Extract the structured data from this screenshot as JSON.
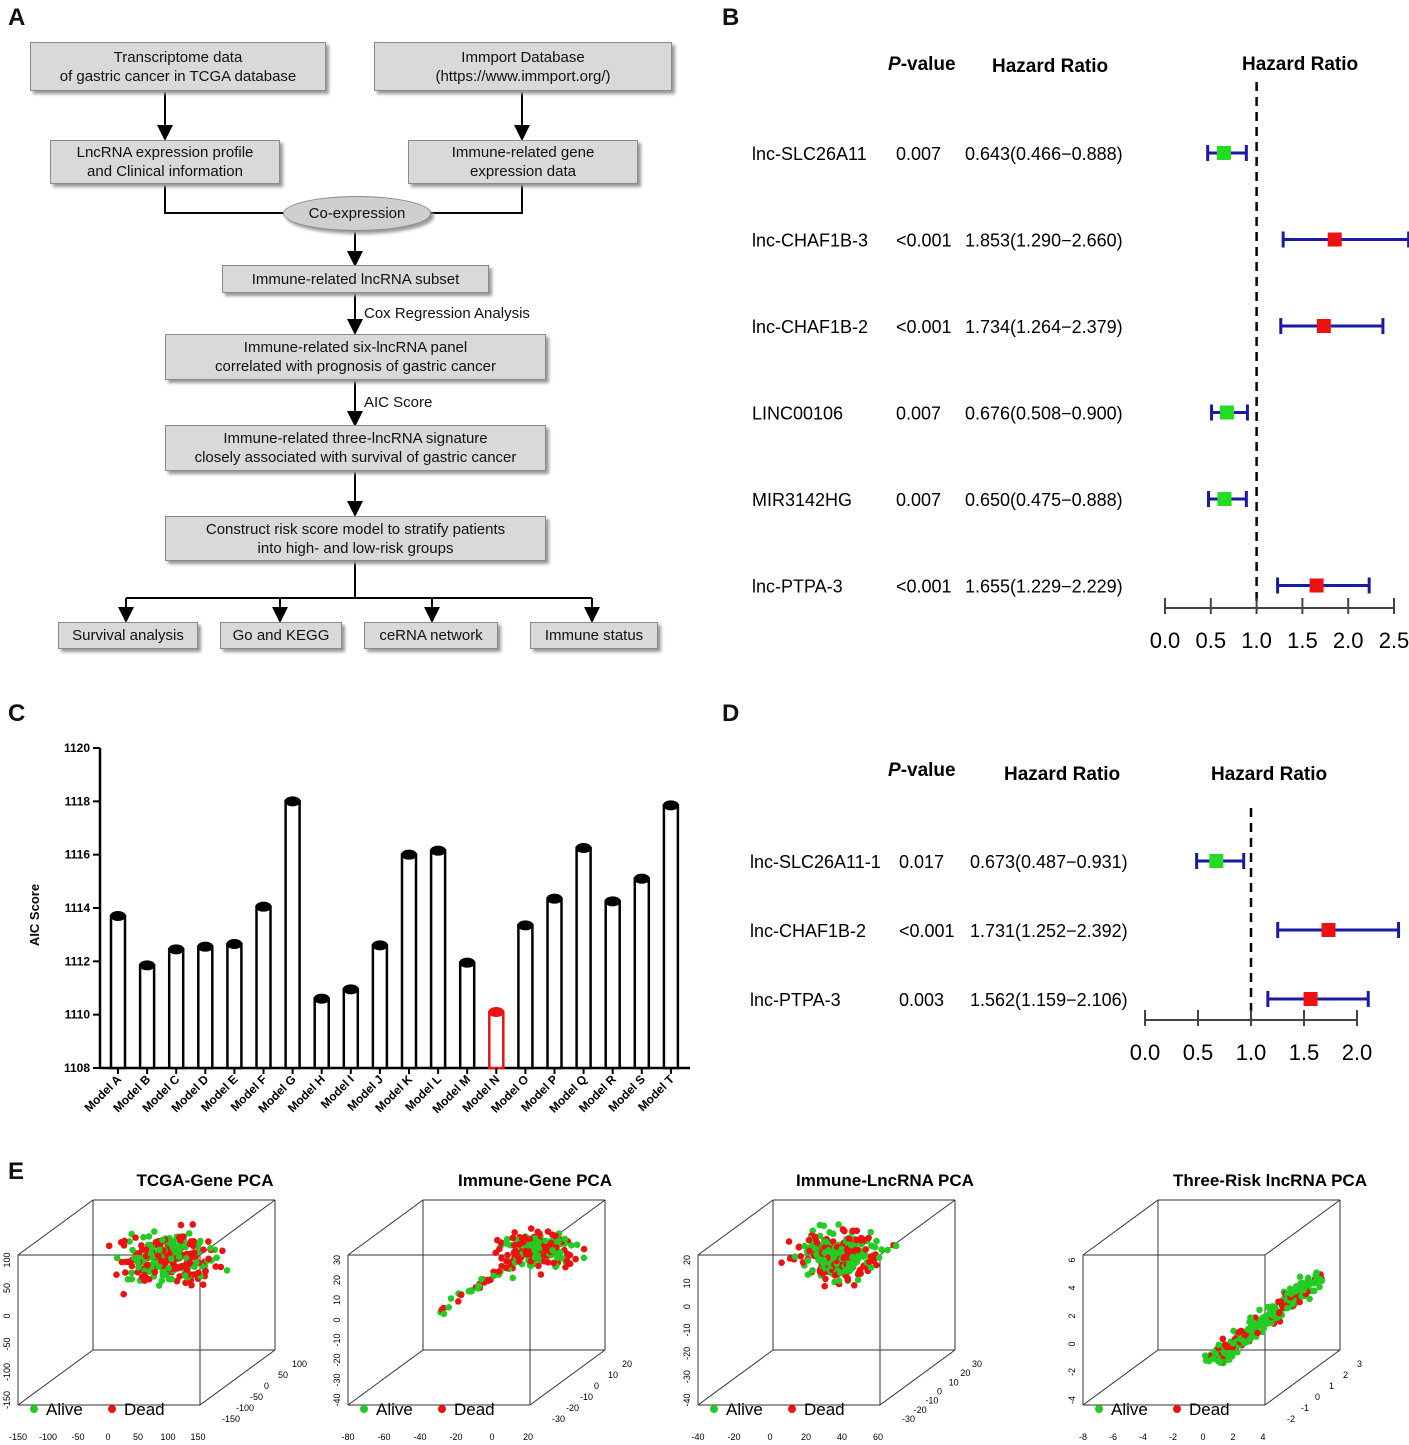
{
  "panels": {
    "a": "A",
    "b": "B",
    "c": "C",
    "d": "D",
    "e": "E"
  },
  "flowchart": {
    "tcga_box": "Transcriptome data\nof gastric cancer in TCGA database",
    "immport_box": "Immport Database\n(https://www.immport.org/)",
    "lnc_box": "LncRNA expression profile\nand Clinical information",
    "immune_gene_box": "Immune-related gene\nexpression data",
    "coexpression": "Co-expression",
    "subset_box": "Immune-related lncRNA subset",
    "cox_label": "Cox Regression Analysis",
    "six_panel_box": "Immune-related six-lncRNA panel\ncorrelated with prognosis of gastric cancer",
    "aic_label": "AIC Score",
    "three_sig_box": "Immune-related three-lncRNA signature\nclosely associated with survival of gastric cancer",
    "risk_box": "Construct risk score model to stratify patients\ninto high- and low-risk groups",
    "outputs": [
      "Survival analysis",
      "Go and KEGG",
      "ceRNA network",
      "Immune status"
    ]
  },
  "forest_b": {
    "headers": {
      "p_prefix": "P",
      "p_suffix": "-value",
      "hr": "Hazard Ratio",
      "plot_title": "Hazard Ratio"
    },
    "xticks": [
      "0.0",
      "0.5",
      "1.0",
      "1.5",
      "2.0",
      "2.5"
    ],
    "xmin": 0.0,
    "xmax": 2.5,
    "ref": 1.0,
    "rows": [
      {
        "name": "lnc-SLC26A11",
        "p": "0.007",
        "hr_text": "0.643(0.466−0.888)",
        "hr": 0.643,
        "lo": 0.466,
        "hi": 0.888,
        "color": "#22dd22"
      },
      {
        "name": "lnc-CHAF1B-3",
        "p": "<0.001",
        "hr_text": "1.853(1.290−2.660)",
        "hr": 1.853,
        "lo": 1.29,
        "hi": 2.66,
        "color": "#ee1111"
      },
      {
        "name": "lnc-CHAF1B-2",
        "p": "<0.001",
        "hr_text": "1.734(1.264−2.379)",
        "hr": 1.734,
        "lo": 1.264,
        "hi": 2.379,
        "color": "#ee1111"
      },
      {
        "name": "LINC00106",
        "p": "0.007",
        "hr_text": "0.676(0.508−0.900)",
        "hr": 0.676,
        "lo": 0.508,
        "hi": 0.9,
        "color": "#22dd22"
      },
      {
        "name": "MIR3142HG",
        "p": "0.007",
        "hr_text": "0.650(0.475−0.888)",
        "hr": 0.65,
        "lo": 0.475,
        "hi": 0.888,
        "color": "#22dd22"
      },
      {
        "name": "lnc-PTPA-3",
        "p": "<0.001",
        "hr_text": "1.655(1.229−2.229)",
        "hr": 1.655,
        "lo": 1.229,
        "hi": 2.229,
        "color": "#ee1111"
      }
    ]
  },
  "forest_d": {
    "headers": {
      "p_prefix": "P",
      "p_suffix": "-value",
      "hr": "Hazard Ratio",
      "plot_title": "Hazard Ratio"
    },
    "xticks": [
      "0.0",
      "0.5",
      "1.0",
      "1.5",
      "2.0"
    ],
    "xmin": 0.0,
    "xmax": 2.0,
    "ref": 1.0,
    "rows": [
      {
        "name": "lnc-SLC26A11-1",
        "p": "0.017",
        "hr_text": "0.673(0.487−0.931)",
        "hr": 0.673,
        "lo": 0.487,
        "hi": 0.931,
        "color": "#22dd22"
      },
      {
        "name": "lnc-CHAF1B-2",
        "p": "<0.001",
        "hr_text": "1.731(1.252−2.392)",
        "hr": 1.731,
        "lo": 1.252,
        "hi": 2.392,
        "color": "#ee1111"
      },
      {
        "name": "lnc-PTPA-3",
        "p": "0.003",
        "hr_text": "1.562(1.159−2.106)",
        "hr": 1.562,
        "lo": 1.159,
        "hi": 2.106,
        "color": "#ee1111"
      }
    ]
  },
  "chart_data": [
    {
      "type": "bar",
      "title": "",
      "ylabel": "AIC Score",
      "ylim": [
        1108,
        1120
      ],
      "yticks": [
        1108,
        1110,
        1112,
        1114,
        1116,
        1118,
        1120
      ],
      "categories": [
        "Model A",
        "Model B",
        "Model C",
        "Model D",
        "Model E",
        "Model F",
        "Model G",
        "Model H",
        "Model I",
        "Model J",
        "Model K",
        "Model L",
        "Model M",
        "Model N",
        "Model O",
        "Model P",
        "Model Q",
        "Model R",
        "Model S",
        "Model T"
      ],
      "values": [
        1113.7,
        1111.85,
        1112.45,
        1112.55,
        1112.65,
        1114.05,
        1118.0,
        1110.6,
        1110.95,
        1112.6,
        1116.0,
        1116.15,
        1111.95,
        1110.1,
        1113.35,
        1114.35,
        1116.25,
        1114.25,
        1115.1,
        1117.85
      ],
      "highlight": "Model N",
      "highlight_color": "#ee1111"
    },
    {
      "type": "scatter",
      "title": "TCGA-Gene PCA",
      "series": [
        {
          "name": "Alive",
          "color": "#22cc22"
        },
        {
          "name": "Dead",
          "color": "#ee1111"
        }
      ],
      "z_ticks": [
        "100",
        "50",
        "0",
        "-50",
        "-100",
        "-150"
      ],
      "x_ticks": [
        "-150",
        "-100",
        "-50",
        "0",
        "50",
        "100",
        "150"
      ],
      "y_ticks": [
        "-150",
        "-100",
        "-50",
        "0",
        "50",
        "100"
      ]
    },
    {
      "type": "scatter",
      "title": "Immune-Gene PCA",
      "series": [
        {
          "name": "Alive",
          "color": "#22cc22"
        },
        {
          "name": "Dead",
          "color": "#ee1111"
        }
      ],
      "z_ticks": [
        "30",
        "20",
        "10",
        "0",
        "-10",
        "-20",
        "-30",
        "-40"
      ],
      "x_ticks": [
        "-80",
        "-60",
        "-40",
        "-20",
        "0",
        "20"
      ],
      "y_ticks": [
        "-30",
        "-20",
        "-10",
        "0",
        "10",
        "20"
      ]
    },
    {
      "type": "scatter",
      "title": "Immune-LncRNA PCA",
      "series": [
        {
          "name": "Alive",
          "color": "#22cc22"
        },
        {
          "name": "Dead",
          "color": "#ee1111"
        }
      ],
      "z_ticks": [
        "20",
        "10",
        "0",
        "-10",
        "-20",
        "-30",
        "-40"
      ],
      "x_ticks": [
        "-40",
        "-20",
        "0",
        "20",
        "40",
        "60"
      ],
      "y_ticks": [
        "-30",
        "-20",
        "-10",
        "0",
        "10",
        "20",
        "30"
      ]
    },
    {
      "type": "scatter",
      "title": "Three-Risk lncRNA PCA",
      "series": [
        {
          "name": "Alive",
          "color": "#22cc22"
        },
        {
          "name": "Dead",
          "color": "#ee1111"
        }
      ],
      "z_ticks": [
        "6",
        "4",
        "2",
        "0",
        "-2",
        "-4"
      ],
      "x_ticks": [
        "-8",
        "-6",
        "-4",
        "-2",
        "0",
        "2",
        "4"
      ],
      "y_ticks": [
        "-2",
        "-1",
        "0",
        "1",
        "2",
        "3"
      ]
    }
  ]
}
